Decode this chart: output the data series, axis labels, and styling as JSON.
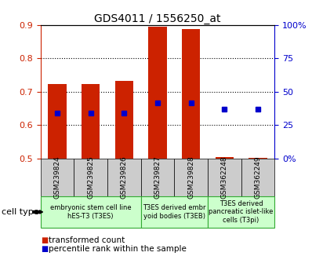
{
  "title": "GDS4011 / 1556250_at",
  "samples": [
    "GSM239824",
    "GSM239825",
    "GSM239826",
    "GSM239827",
    "GSM239828",
    "GSM362248",
    "GSM362249"
  ],
  "red_values": [
    0.722,
    0.722,
    0.732,
    0.895,
    0.888,
    0.505,
    0.503
  ],
  "blue_values": [
    0.635,
    0.635,
    0.637,
    0.667,
    0.667,
    0.647,
    0.647
  ],
  "ylim_left": [
    0.5,
    0.9
  ],
  "ylim_right": [
    0,
    100
  ],
  "yticks_left": [
    0.5,
    0.6,
    0.7,
    0.8,
    0.9
  ],
  "yticks_right": [
    0,
    25,
    50,
    75,
    100
  ],
  "ytick_labels_right": [
    "0%",
    "25",
    "50",
    "75",
    "100%"
  ],
  "group_starts": [
    0,
    3,
    5
  ],
  "group_ends": [
    3,
    5,
    7
  ],
  "group_labels": [
    "embryonic stem cell line\nhES-T3 (T3ES)",
    "T3ES derived embr\nyoid bodies (T3EB)",
    "T3ES derived\npancreatic islet-like\ncells (T3pi)"
  ],
  "bar_width": 0.55,
  "red_color": "#cc2200",
  "blue_color": "#0000cc",
  "bar_bottom": 0.5,
  "legend_red": "transformed count",
  "legend_blue": "percentile rank within the sample",
  "cell_type_label": "cell type",
  "sample_bg_color": "#cccccc",
  "group_bg_color": "#ccffcc",
  "group_border_color": "#33aa33",
  "title_fontsize": 10,
  "tick_fontsize": 8,
  "sample_fontsize": 6.5,
  "group_fontsize": 6,
  "legend_fontsize": 7.5
}
